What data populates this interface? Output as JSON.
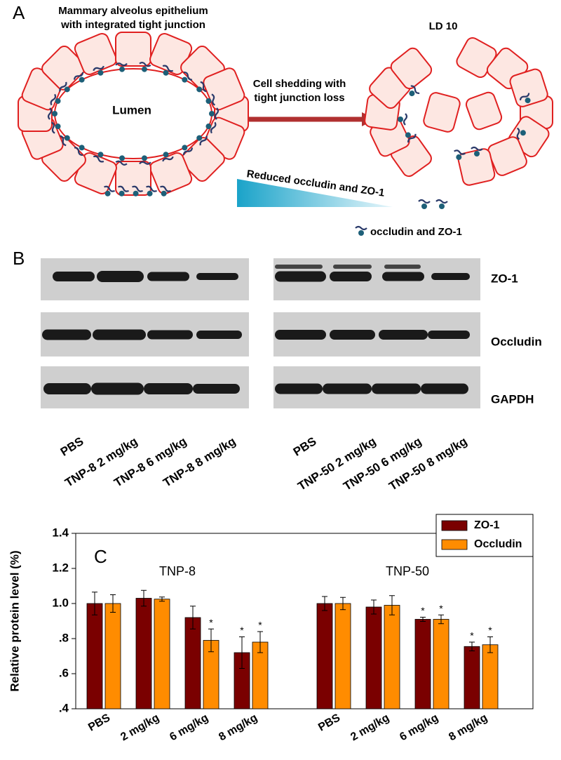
{
  "panel_a": {
    "letter": "A",
    "title_lines": [
      "Mammary alveolus epithelium",
      "with integrated tight junction"
    ],
    "lumen": "Lumen",
    "arrow_lines": [
      "Cell shedding with",
      "tight junction loss"
    ],
    "right_title": "LD 10",
    "gradient_label": "Reduced occludin and ZO-1",
    "legend": "occludin and ZO-1"
  },
  "panel_b": {
    "letter": "B",
    "rows": [
      "ZO-1",
      "Occludin",
      "GAPDH"
    ],
    "lanes_left": [
      "PBS",
      "TNP-8 2 mg/kg",
      "TNP-8 6 mg/kg",
      "TNP-8 8 mg/kg"
    ],
    "lanes_right": [
      "PBS",
      "TNP-50 2 mg/kg",
      "TNP-50 6 mg/kg",
      "TNP-50 8 mg/kg"
    ]
  },
  "chart_data": {
    "type": "bar",
    "letter": "C",
    "y_label": "Relative protein level (%)",
    "groups": [
      "TNP-8",
      "TNP-50"
    ],
    "categories": [
      "PBS",
      "2 mg/kg",
      "6 mg/kg",
      "8 mg/kg",
      "PBS",
      "2 mg/kg",
      "6 mg/kg",
      "8 mg/kg"
    ],
    "series": [
      {
        "name": "ZO-1",
        "color": "#7a0000",
        "values": [
          1.0,
          1.03,
          0.92,
          0.72,
          1.0,
          0.98,
          0.91,
          0.755
        ],
        "errors": [
          0.065,
          0.045,
          0.065,
          0.09,
          0.04,
          0.04,
          0.012,
          0.025
        ],
        "annotations": [
          null,
          null,
          null,
          "*",
          null,
          null,
          "*",
          "*"
        ]
      },
      {
        "name": "Occludin",
        "color": "#ff8c00",
        "values": [
          1.0,
          1.025,
          0.79,
          0.78,
          1.0,
          0.99,
          0.91,
          0.765
        ],
        "errors": [
          0.05,
          0.012,
          0.065,
          0.06,
          0.035,
          0.055,
          0.025,
          0.045
        ],
        "annotations": [
          null,
          null,
          "*",
          "*",
          null,
          null,
          "*",
          "*"
        ]
      }
    ],
    "ylim": [
      0.4,
      1.4
    ],
    "yticks": [
      {
        "value": 0.4,
        "label": ".4"
      },
      {
        "value": 0.6,
        "label": ".6"
      },
      {
        "value": 0.8,
        "label": ".8"
      },
      {
        "value": 1.0,
        "label": "1.0"
      },
      {
        "value": 1.2,
        "label": "1.2"
      },
      {
        "value": 1.4,
        "label": "1.4"
      }
    ],
    "legend": "upper right"
  }
}
